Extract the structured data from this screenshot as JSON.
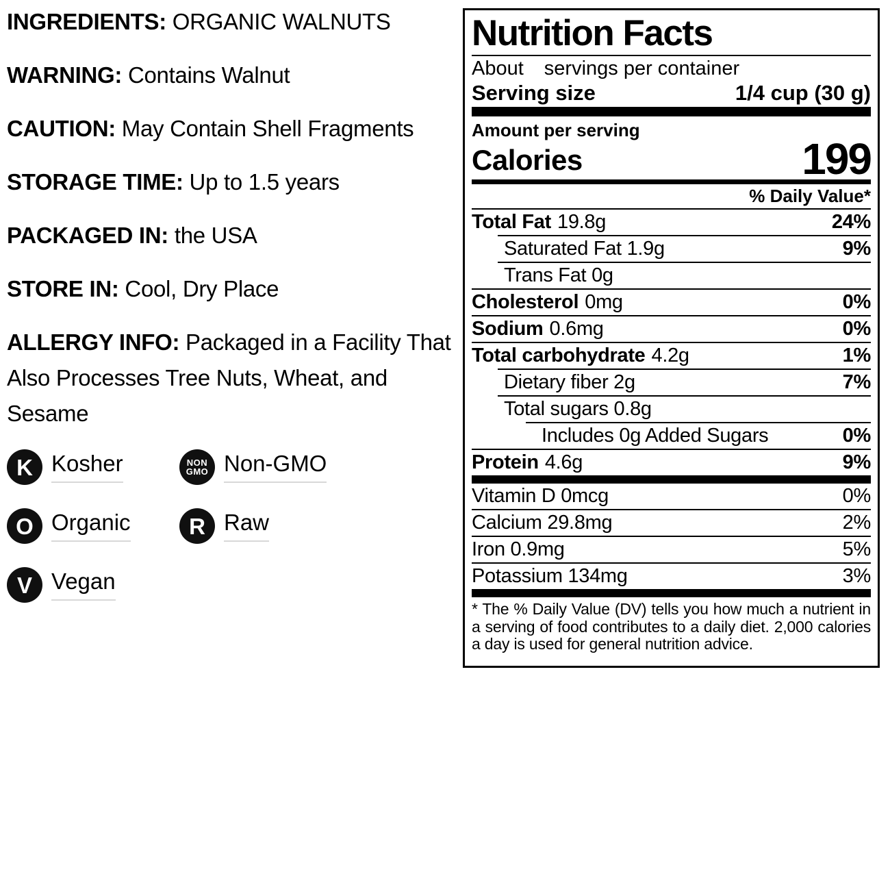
{
  "left_panel": {
    "info_lines": [
      {
        "label": "INGREDIENTS:",
        "value": "ORGANIC WALNUTS"
      },
      {
        "label": "WARNING:",
        "value": "Contains Walnut"
      },
      {
        "label": "CAUTION:",
        "value": "May Contain Shell Fragments"
      },
      {
        "label": "STORAGE TIME:",
        "value": "Up to 1.5 years"
      },
      {
        "label": "PACKAGED IN:",
        "value": "the USA"
      },
      {
        "label": "STORE IN:",
        "value": "Cool, Dry Place"
      },
      {
        "label": "ALLERGY INFO:",
        "value": "Packaged in a Facility That Also Processes Tree Nuts, Wheat, and Sesame"
      }
    ],
    "badges": [
      {
        "icon": "K",
        "label": "Kosher"
      },
      {
        "icon": "NON\nGMO",
        "label": "Non-GMO"
      },
      {
        "icon": "O",
        "label": "Organic"
      },
      {
        "icon": "R",
        "label": "Raw"
      },
      {
        "icon": "V",
        "label": "Vegan"
      }
    ]
  },
  "nutrition": {
    "title": "Nutrition Facts",
    "servings_prefix": "About",
    "servings_suffix": "servings per container",
    "serving_size_label": "Serving size",
    "serving_size_value": "1/4 cup (30 g)",
    "amount_per_serving": "Amount per serving",
    "calories_label": "Calories",
    "calories_value": "199",
    "daily_value_header": "% Daily Value*",
    "rows": [
      {
        "name": "Total Fat",
        "amount": "19.8g",
        "dv": "24%"
      },
      {
        "name": "Saturated Fat 1.9g",
        "amount": "",
        "dv": "9%"
      },
      {
        "name": "Trans Fat 0g",
        "amount": "",
        "dv": ""
      },
      {
        "name": "Cholesterol",
        "amount": "0mg",
        "dv": "0%"
      },
      {
        "name": "Sodium",
        "amount": "0.6mg",
        "dv": "0%"
      },
      {
        "name": "Total carbohydrate",
        "amount": "4.2g",
        "dv": "1%"
      },
      {
        "name": "Dietary fiber 2g",
        "amount": "",
        "dv": "7%"
      },
      {
        "name": "Total sugars 0.8g",
        "amount": "",
        "dv": ""
      },
      {
        "name": "Includes 0g Added Sugars",
        "amount": "",
        "dv": "0%"
      },
      {
        "name": "Protein",
        "amount": "4.6g",
        "dv": "9%"
      },
      {
        "name": "Vitamin D 0mcg",
        "amount": "",
        "dv": "0%"
      },
      {
        "name": "Calcium 29.8mg",
        "amount": "",
        "dv": "2%"
      },
      {
        "name": "Iron 0.9mg",
        "amount": "",
        "dv": "5%"
      },
      {
        "name": "Potassium 134mg",
        "amount": "",
        "dv": "3%"
      }
    ],
    "footnote": "* The % Daily Value (DV) tells you how much a nutrient in a serving of food contributes to a daily diet. 2,000 calories a day is used for general nutrition advice."
  }
}
